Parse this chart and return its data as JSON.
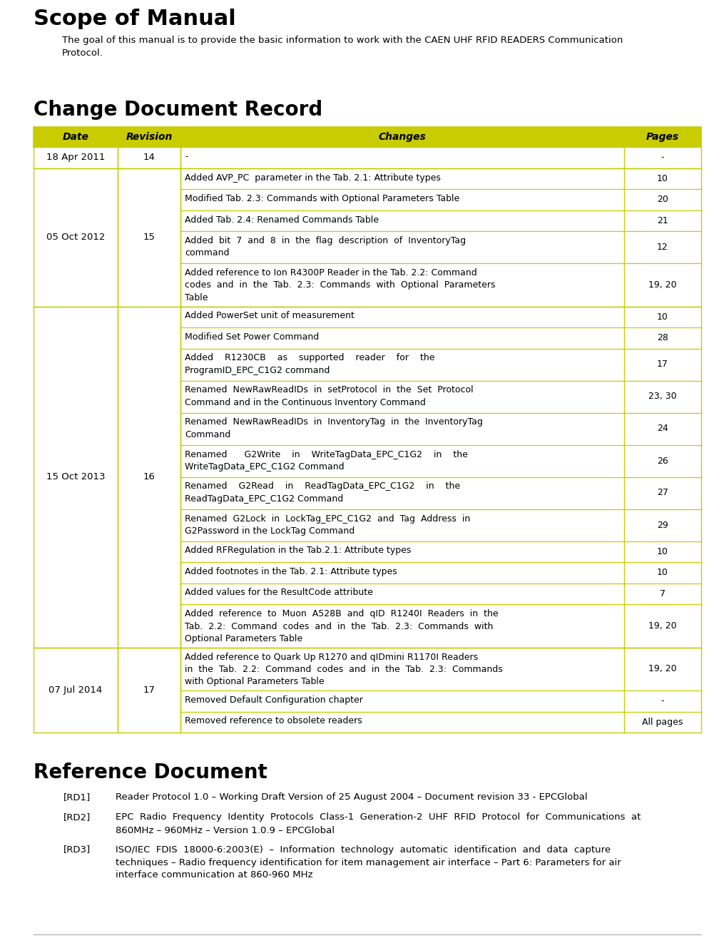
{
  "title1": "Scope of Manual",
  "para1": "The goal of this manual is to provide the basic information to work with the CAEN UHF RFID READERS Communication\nProtocol.",
  "title2": "Change Document Record",
  "table_header": [
    "Date",
    "Revision",
    "Changes",
    "Pages"
  ],
  "header_bg": "#c8cc00",
  "header_fg": "#000000",
  "table_border": "#c8cc00",
  "title3": "Reference Document",
  "refs": [
    [
      "[RD1]",
      "Reader Protocol 1.0 – Working Draft Version of 25 August 2004 – Document revision 33 - EPCGlobal"
    ],
    [
      "[RD2]",
      "EPC  Radio  Frequency  Identity  Protocols  Class-1  Generation-2  UHF  RFID  Protocol  for  Communications  at\n860MHz – 960MHz – Version 1.0.9 – EPCGlobal"
    ],
    [
      "[RD3]",
      "ISO/IEC  FDIS  18000-6:2003(E)  –  Information  technology  automatic  identification  and  data  capture\ntechniques – Radio frequency identification for item management air interface – Part 6: Parameters for air\ninterface communication at 860-960 MHz"
    ]
  ],
  "fig_width": 10.15,
  "fig_height": 13.22,
  "dpi": 100
}
